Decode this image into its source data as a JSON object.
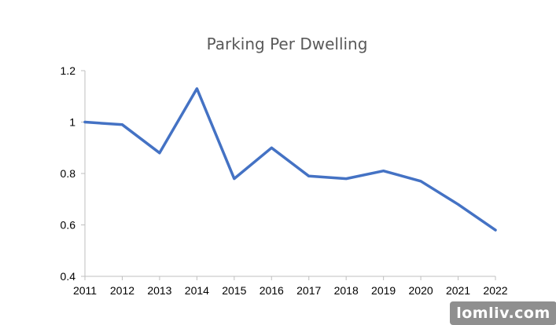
{
  "chart_data": {
    "type": "line",
    "title": "Parking Per Dwelling",
    "xlabel": "",
    "ylabel": "",
    "categories": [
      "2011",
      "2012",
      "2013",
      "2014",
      "2015",
      "2016",
      "2017",
      "2018",
      "2019",
      "2020",
      "2021",
      "2022"
    ],
    "series": [
      {
        "values": [
          1.0,
          0.99,
          0.88,
          1.13,
          0.78,
          0.9,
          0.79,
          0.78,
          0.81,
          0.77,
          0.68,
          0.58
        ],
        "color": "#4472C4"
      }
    ],
    "ylim": [
      0.4,
      1.2
    ],
    "yticks": [
      0.4,
      0.6,
      0.8,
      1,
      1.2
    ],
    "ytick_labels": [
      "0.4",
      "0.6",
      "0.8",
      "1",
      "1.2"
    ],
    "grid": false,
    "legend": "none"
  },
  "watermark": {
    "text": "lomliv.com"
  }
}
